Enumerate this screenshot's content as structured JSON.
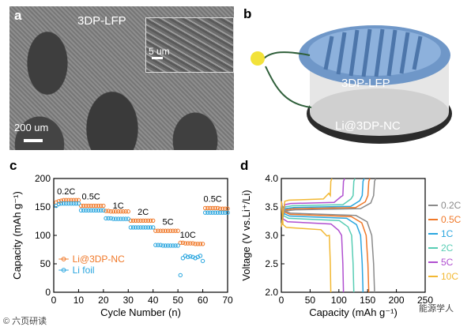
{
  "panel_a": {
    "letter": "a",
    "title": "3DP-LFP",
    "inset_scale": "5 um",
    "scale_bar": "200 um"
  },
  "panel_b": {
    "letter": "b",
    "label_top": "3DP-LFP",
    "label_bottom": "Li@3DP-NC"
  },
  "panel_c": {
    "letter": "c"
  },
  "panel_d": {
    "letter": "d"
  },
  "watermark_left": "© 六页研读",
  "watermark_right": "能源学人",
  "chart_data": [
    {
      "type": "scatter",
      "xlabel": "Cycle Number (n)",
      "ylabel": "Capacity (mAh g⁻¹)",
      "xlim": [
        0,
        70
      ],
      "ylim": [
        0,
        200
      ],
      "xticks": [
        0,
        10,
        20,
        30,
        40,
        50,
        60,
        70
      ],
      "yticks": [
        0,
        50,
        100,
        150,
        200
      ],
      "legend": "lower-left",
      "rate_labels": [
        {
          "text": "0.2C",
          "x": 5,
          "y": 172
        },
        {
          "text": "0.5C",
          "x": 15,
          "y": 163
        },
        {
          "text": "1C",
          "x": 26,
          "y": 147
        },
        {
          "text": "2C",
          "x": 36,
          "y": 136
        },
        {
          "text": "5C",
          "x": 46,
          "y": 119
        },
        {
          "text": "10C",
          "x": 54,
          "y": 96
        },
        {
          "text": "0.5C",
          "x": 64,
          "y": 159
        }
      ],
      "series": [
        {
          "name": "Li@3DP-NC",
          "color": "#f07828",
          "marker": "circle-open",
          "x": [
            1,
            2,
            3,
            4,
            5,
            6,
            7,
            8,
            9,
            10,
            11,
            12,
            13,
            14,
            15,
            16,
            17,
            18,
            19,
            20,
            21,
            22,
            23,
            24,
            25,
            26,
            27,
            28,
            29,
            30,
            31,
            32,
            33,
            34,
            35,
            36,
            37,
            38,
            39,
            40,
            41,
            42,
            43,
            44,
            45,
            46,
            47,
            48,
            49,
            50,
            51,
            52,
            53,
            54,
            55,
            56,
            57,
            58,
            59,
            60,
            61,
            62,
            63,
            64,
            65,
            66,
            67,
            68,
            69,
            70
          ],
          "y": [
            158,
            160,
            161,
            162,
            162,
            162,
            162,
            162,
            162,
            162,
            152,
            152,
            152,
            152,
            152,
            152,
            152,
            152,
            152,
            152,
            143,
            143,
            142,
            142,
            142,
            142,
            142,
            142,
            142,
            142,
            126,
            126,
            126,
            126,
            126,
            126,
            126,
            126,
            126,
            126,
            108,
            108,
            108,
            108,
            108,
            108,
            108,
            108,
            108,
            108,
            87,
            87,
            86,
            86,
            86,
            86,
            85,
            85,
            85,
            85,
            148,
            148,
            148,
            148,
            148,
            148,
            147,
            147,
            147,
            147
          ]
        },
        {
          "name": "Li foil",
          "color": "#2aa6df",
          "marker": "circle-open",
          "x": [
            1,
            2,
            3,
            4,
            5,
            6,
            7,
            8,
            9,
            10,
            11,
            12,
            13,
            14,
            15,
            16,
            17,
            18,
            19,
            20,
            21,
            22,
            23,
            24,
            25,
            26,
            27,
            28,
            29,
            30,
            31,
            32,
            33,
            34,
            35,
            36,
            37,
            38,
            39,
            40,
            41,
            42,
            43,
            44,
            45,
            46,
            47,
            48,
            49,
            50,
            51,
            52,
            53,
            54,
            55,
            56,
            57,
            58,
            59,
            60,
            61,
            62,
            63,
            64,
            65,
            66,
            67,
            68,
            69,
            70
          ],
          "y": [
            152,
            155,
            156,
            156,
            156,
            156,
            156,
            156,
            156,
            156,
            144,
            144,
            144,
            144,
            144,
            144,
            144,
            144,
            144,
            144,
            130,
            130,
            130,
            129,
            129,
            129,
            129,
            129,
            129,
            129,
            114,
            114,
            114,
            114,
            114,
            114,
            114,
            114,
            114,
            114,
            83,
            83,
            83,
            82,
            82,
            82,
            82,
            82,
            82,
            82,
            30,
            60,
            64,
            62,
            63,
            62,
            60,
            62,
            64,
            55,
            140,
            140,
            140,
            140,
            140,
            140,
            140,
            140,
            140,
            140
          ]
        }
      ]
    },
    {
      "type": "line",
      "xlabel": "Capacity (mAh g⁻¹)",
      "ylabel": "Voltage (V vs.Li⁺/Li)",
      "xlim": [
        0,
        250
      ],
      "ylim": [
        2.0,
        4.0
      ],
      "xticks": [
        0,
        50,
        100,
        150,
        200,
        250
      ],
      "yticks": [
        2.0,
        2.5,
        3.0,
        3.5,
        4.0
      ],
      "legend": "right",
      "series": [
        {
          "name": "0.2C",
          "color": "#8a8a8a",
          "capacity": 162,
          "charge_plateau": 3.45,
          "discharge_plateau": 3.39
        },
        {
          "name": "0.5C",
          "color": "#f07828",
          "capacity": 152,
          "charge_plateau": 3.47,
          "discharge_plateau": 3.37
        },
        {
          "name": "1C",
          "color": "#2aa6df",
          "capacity": 142,
          "charge_plateau": 3.49,
          "discharge_plateau": 3.34
        },
        {
          "name": "2C",
          "color": "#58cdb4",
          "capacity": 126,
          "charge_plateau": 3.52,
          "discharge_plateau": 3.3
        },
        {
          "name": "5C",
          "color": "#b04fd0",
          "capacity": 108,
          "charge_plateau": 3.56,
          "discharge_plateau": 3.24
        },
        {
          "name": "10C",
          "color": "#f2b833",
          "capacity": 86,
          "charge_plateau": 3.62,
          "discharge_plateau": 3.14
        }
      ]
    }
  ]
}
